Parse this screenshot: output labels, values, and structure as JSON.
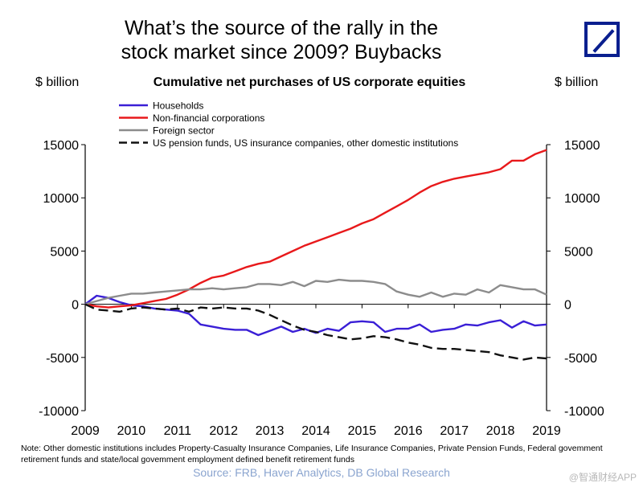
{
  "title_lines": [
    "What’s the source of the rally in the",
    "stock market since 2009? Buybacks"
  ],
  "left_unit": "$ billion",
  "right_unit": "$ billion",
  "note": "Note: Other domestic institutions includes Property-Casualty Insurance Companies, Life Insurance Companies, Private Pension Funds, Federal govemment retirement funds and state/local govemment employment defined benefit retirement funds",
  "source": "Source: FRB, Haver Analytics, DB Global Research",
  "watermark": "@智通财经APP",
  "logo": "deutsche-bank-logo",
  "chart_data": {
    "type": "line",
    "title": "Cumulative net purchases of US corporate equities",
    "ylabel": "$ billion",
    "y2label": "$ billion",
    "xlim": [
      2009,
      2019
    ],
    "ylim": [
      -10000,
      15000
    ],
    "xticks": [
      2009,
      2010,
      2011,
      2012,
      2013,
      2014,
      2015,
      2016,
      2017,
      2018,
      2019
    ],
    "yticks": [
      -10000,
      -5000,
      0,
      5000,
      10000,
      15000
    ],
    "grid": false,
    "legend_position": "top-left",
    "series": [
      {
        "name": "Households",
        "color": "#3a1fd6",
        "dash": "solid",
        "points": [
          [
            2009.0,
            0
          ],
          [
            2009.25,
            800
          ],
          [
            2009.5,
            600
          ],
          [
            2009.75,
            200
          ],
          [
            2010.0,
            -100
          ],
          [
            2010.25,
            -200
          ],
          [
            2010.5,
            -400
          ],
          [
            2010.75,
            -500
          ],
          [
            2011.0,
            -600
          ],
          [
            2011.25,
            -900
          ],
          [
            2011.5,
            -1900
          ],
          [
            2011.75,
            -2100
          ],
          [
            2012.0,
            -2300
          ],
          [
            2012.25,
            -2400
          ],
          [
            2012.5,
            -2400
          ],
          [
            2012.75,
            -2900
          ],
          [
            2013.0,
            -2500
          ],
          [
            2013.25,
            -2100
          ],
          [
            2013.5,
            -2600
          ],
          [
            2013.75,
            -2300
          ],
          [
            2014.0,
            -2700
          ],
          [
            2014.25,
            -2300
          ],
          [
            2014.5,
            -2500
          ],
          [
            2014.75,
            -1700
          ],
          [
            2015.0,
            -1600
          ],
          [
            2015.25,
            -1700
          ],
          [
            2015.5,
            -2600
          ],
          [
            2015.75,
            -2300
          ],
          [
            2016.0,
            -2300
          ],
          [
            2016.25,
            -1900
          ],
          [
            2016.5,
            -2600
          ],
          [
            2016.75,
            -2400
          ],
          [
            2017.0,
            -2300
          ],
          [
            2017.25,
            -1900
          ],
          [
            2017.5,
            -2000
          ],
          [
            2017.75,
            -1700
          ],
          [
            2018.0,
            -1500
          ],
          [
            2018.25,
            -2200
          ],
          [
            2018.5,
            -1600
          ],
          [
            2018.75,
            -2000
          ],
          [
            2019.0,
            -1900
          ]
        ]
      },
      {
        "name": "Non-financial corporations",
        "color": "#e8191b",
        "dash": "solid",
        "points": [
          [
            2009.0,
            0
          ],
          [
            2009.25,
            -200
          ],
          [
            2009.5,
            -300
          ],
          [
            2009.75,
            -200
          ],
          [
            2010.0,
            -100
          ],
          [
            2010.25,
            100
          ],
          [
            2010.5,
            300
          ],
          [
            2010.75,
            500
          ],
          [
            2011.0,
            900
          ],
          [
            2011.25,
            1400
          ],
          [
            2011.5,
            2000
          ],
          [
            2011.75,
            2500
          ],
          [
            2012.0,
            2700
          ],
          [
            2012.25,
            3100
          ],
          [
            2012.5,
            3500
          ],
          [
            2012.75,
            3800
          ],
          [
            2013.0,
            4000
          ],
          [
            2013.25,
            4500
          ],
          [
            2013.5,
            5000
          ],
          [
            2013.75,
            5500
          ],
          [
            2014.0,
            5900
          ],
          [
            2014.25,
            6300
          ],
          [
            2014.5,
            6700
          ],
          [
            2014.75,
            7100
          ],
          [
            2015.0,
            7600
          ],
          [
            2015.25,
            8000
          ],
          [
            2015.5,
            8600
          ],
          [
            2015.75,
            9200
          ],
          [
            2016.0,
            9800
          ],
          [
            2016.25,
            10500
          ],
          [
            2016.5,
            11100
          ],
          [
            2016.75,
            11500
          ],
          [
            2017.0,
            11800
          ],
          [
            2017.25,
            12000
          ],
          [
            2017.5,
            12200
          ],
          [
            2017.75,
            12400
          ],
          [
            2018.0,
            12700
          ],
          [
            2018.25,
            13500
          ],
          [
            2018.5,
            13500
          ],
          [
            2018.75,
            14100
          ],
          [
            2019.0,
            14500
          ]
        ]
      },
      {
        "name": "Foreign sector",
        "color": "#8c8c8c",
        "dash": "solid",
        "points": [
          [
            2009.0,
            0
          ],
          [
            2009.25,
            300
          ],
          [
            2009.5,
            600
          ],
          [
            2009.75,
            800
          ],
          [
            2010.0,
            1000
          ],
          [
            2010.25,
            1000
          ],
          [
            2010.5,
            1100
          ],
          [
            2010.75,
            1200
          ],
          [
            2011.0,
            1300
          ],
          [
            2011.25,
            1400
          ],
          [
            2011.5,
            1400
          ],
          [
            2011.75,
            1500
          ],
          [
            2012.0,
            1400
          ],
          [
            2012.25,
            1500
          ],
          [
            2012.5,
            1600
          ],
          [
            2012.75,
            1900
          ],
          [
            2013.0,
            1900
          ],
          [
            2013.25,
            1800
          ],
          [
            2013.5,
            2100
          ],
          [
            2013.75,
            1700
          ],
          [
            2014.0,
            2200
          ],
          [
            2014.25,
            2100
          ],
          [
            2014.5,
            2300
          ],
          [
            2014.75,
            2200
          ],
          [
            2015.0,
            2200
          ],
          [
            2015.25,
            2100
          ],
          [
            2015.5,
            1900
          ],
          [
            2015.75,
            1200
          ],
          [
            2016.0,
            900
          ],
          [
            2016.25,
            700
          ],
          [
            2016.5,
            1100
          ],
          [
            2016.75,
            700
          ],
          [
            2017.0,
            1000
          ],
          [
            2017.25,
            900
          ],
          [
            2017.5,
            1400
          ],
          [
            2017.75,
            1100
          ],
          [
            2018.0,
            1800
          ],
          [
            2018.25,
            1600
          ],
          [
            2018.5,
            1400
          ],
          [
            2018.75,
            1400
          ],
          [
            2019.0,
            900
          ]
        ]
      },
      {
        "name": "US pension funds, US insurance companies, other domestic institutions",
        "color": "#111111",
        "dash": "dashed",
        "points": [
          [
            2009.0,
            0
          ],
          [
            2009.25,
            -500
          ],
          [
            2009.5,
            -600
          ],
          [
            2009.75,
            -700
          ],
          [
            2010.0,
            -400
          ],
          [
            2010.25,
            -300
          ],
          [
            2010.5,
            -400
          ],
          [
            2010.75,
            -500
          ],
          [
            2011.0,
            -400
          ],
          [
            2011.25,
            -700
          ],
          [
            2011.5,
            -300
          ],
          [
            2011.75,
            -400
          ],
          [
            2012.0,
            -300
          ],
          [
            2012.25,
            -400
          ],
          [
            2012.5,
            -400
          ],
          [
            2012.75,
            -600
          ],
          [
            2013.0,
            -1000
          ],
          [
            2013.25,
            -1500
          ],
          [
            2013.5,
            -2000
          ],
          [
            2013.75,
            -2400
          ],
          [
            2014.0,
            -2600
          ],
          [
            2014.25,
            -2900
          ],
          [
            2014.5,
            -3100
          ],
          [
            2014.75,
            -3300
          ],
          [
            2015.0,
            -3200
          ],
          [
            2015.25,
            -3000
          ],
          [
            2015.5,
            -3100
          ],
          [
            2015.75,
            -3300
          ],
          [
            2016.0,
            -3600
          ],
          [
            2016.25,
            -3800
          ],
          [
            2016.5,
            -4100
          ],
          [
            2016.75,
            -4200
          ],
          [
            2017.0,
            -4200
          ],
          [
            2017.25,
            -4300
          ],
          [
            2017.5,
            -4400
          ],
          [
            2017.75,
            -4500
          ],
          [
            2018.0,
            -4800
          ],
          [
            2018.25,
            -5000
          ],
          [
            2018.5,
            -5200
          ],
          [
            2018.75,
            -5000
          ],
          [
            2019.0,
            -5100
          ]
        ]
      }
    ]
  }
}
